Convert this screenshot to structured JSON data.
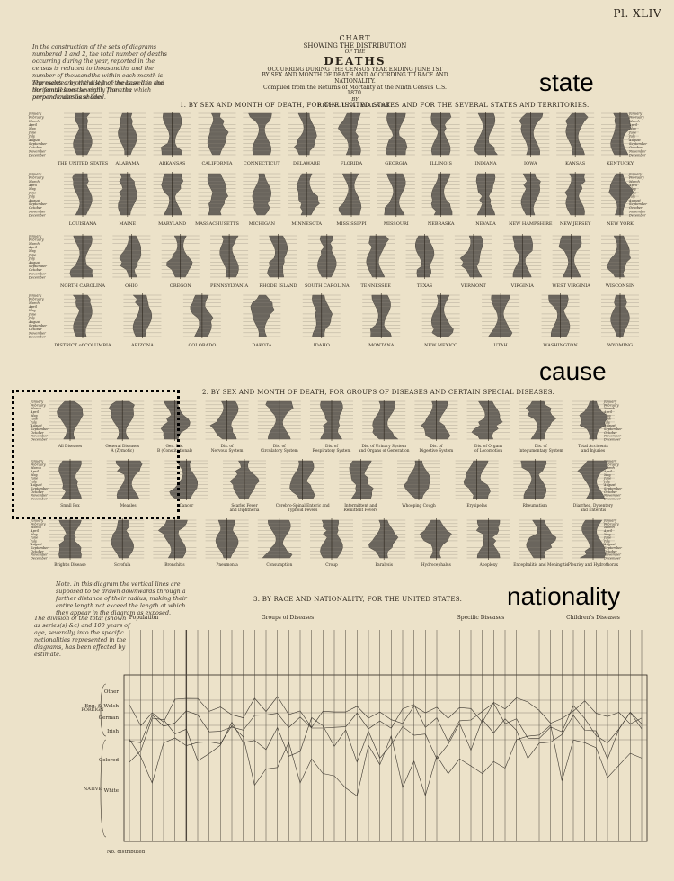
{
  "plate": "Pl. XLIV",
  "note_top": "In the construction of the sets of diagrams numbered 1 and 2, the total number of deaths occurring during the year, reported in the census is reduced to thousandths and the number of thousandths within each month is represented by the distance measured in the horizontal lines severally from the perpendicular base line.",
  "note_top2": "The males are on the left of the base line and the females on the right. The area which preponderates is shaded.",
  "title": {
    "line1": "CHART",
    "line2": "SHOWING THE DISTRIBUTION",
    "line2b": "OF THE",
    "line3": "DEATHS",
    "line4": "OCCURRING DURING THE CENSUS YEAR ENDING JUNE 1ST",
    "line5": "BY SEX AND MONTH OF DEATH AND ACCORDING TO RACE AND NATIONALITY.",
    "line6": "Compiled from the Returns of Mortality at the Ninth Census U.S. 1870.",
    "line7": "BY",
    "line8": "FRANCIS A. WALKER."
  },
  "sections": {
    "s1": "1. BY SEX AND MONTH OF DEATH, FOR THE UNITED STATES AND FOR THE SEVERAL STATES AND TERRITORIES.",
    "s2": "2. BY SEX AND MONTH OF DEATH, FOR GROUPS OF DISEASES AND CERTAIN SPECIAL DISEASES.",
    "s3": "3. BY RACE AND NATIONALITY, FOR THE UNITED STATES."
  },
  "overlay_labels": {
    "state": "state",
    "cause": "cause",
    "nationality": "nationality"
  },
  "note_mid": "Note. In this diagram the vertical lines are supposed to be drawn downwards through a farther distance of their radius, making their entire length not exceed the length at which they appear in the diagram as exposed.",
  "note_low": "The division of the total (shown as series(s) &c) and 100 years of age, severally, into the specific nationalities represented in the diagrams, has been effected by estimate.",
  "months": [
    "January",
    "February",
    "March",
    "April",
    "May",
    "June",
    "July",
    "August",
    "September",
    "October",
    "November",
    "December"
  ],
  "chart_data": [
    {
      "type": "area",
      "title": "1. BY SEX AND MONTH OF DEATH, FOR THE UNITED STATES AND FOR THE SEVERAL STATES AND TERRITORIES.",
      "rows": [
        [
          "THE UNITED STATES",
          "ALABAMA",
          "ARKANSAS",
          "CALIFORNIA",
          "CONNECTICUT",
          "DELAWARE",
          "FLORIDA",
          "GEORGIA",
          "ILLINOIS",
          "INDIANA",
          "IOWA",
          "KANSAS",
          "KENTUCKY"
        ],
        [
          "LOUISIANA",
          "MAINE",
          "MARYLAND",
          "MASSACHUSETTS",
          "MICHIGAN",
          "MINNESOTA",
          "MISSISSIPPI",
          "MISSOURI",
          "NEBRASKA",
          "NEVADA",
          "NEW HAMPSHIRE",
          "NEW JERSEY",
          "NEW YORK"
        ],
        [
          "NORTH CAROLINA",
          "OHIO",
          "OREGON",
          "PENNSYLVANIA",
          "RHODE ISLAND",
          "SOUTH CAROLINA",
          "TENNESSEE",
          "TEXAS",
          "VERMONT",
          "VIRGINIA",
          "WEST VIRGINIA",
          "WISCONSIN"
        ],
        [
          "DISTRICT of COLUMBIA",
          "ARIZONA",
          "COLORADO",
          "DAKOTA",
          "IDAHO",
          "MONTANA",
          "NEW MEXICO",
          "UTAH",
          "WASHINGTON",
          "WYOMING"
        ]
      ]
    },
    {
      "type": "area",
      "title": "2. BY SEX AND MONTH OF DEATH, FOR GROUPS OF DISEASES AND CERTAIN SPECIAL DISEASES.",
      "rows": [
        [
          "All Diseases",
          "General Diseases A (Zymotic)",
          "Gen. Dis. B (Constitutional)",
          "Dis. of Nervous System",
          "Dis. of Circulatory System",
          "Dis. of Respiratory System",
          "Dis. of Urinary System and Organs of Generation",
          "Dis. of Digestive System",
          "Dis. of Organs of Locomotion",
          "Dis. of Integumentary System",
          "Total Accidents and Injuries"
        ],
        [
          "Small Pox",
          "Measles",
          "Cancer",
          "Scarlet Fever and Diphtheria",
          "Cerebro-Spinal Enteric and Typhoid Fevers",
          "Intermittent and Remittent Fevers",
          "Whooping Cough",
          "Erysipelas",
          "Rheumatism",
          "Diarrhea, Dysentery and Enteritis"
        ],
        [
          "Bright's Disease",
          "Scrofula",
          "Bronchitis",
          "Pneumonia",
          "Consumption",
          "Croup",
          "Paralysis",
          "Hydrocephalus",
          "Apoplexy",
          "Encephalitis and Meningitis",
          "Pleurisy and Hydrothorax"
        ]
      ]
    },
    {
      "type": "line",
      "title": "3. BY RACE AND NATIONALITY, FOR THE UNITED STATES.",
      "groups": [
        "Population",
        "Groups of Diseases",
        "Specific Diseases",
        "Children's Diseases"
      ],
      "categories": [
        "Other",
        "Eng. & Welsh",
        "German",
        "Irish",
        "Colored",
        "White"
      ],
      "side_labels": [
        "FOREIGN",
        "NATIVE"
      ],
      "ylabel": "No. distributed"
    }
  ]
}
